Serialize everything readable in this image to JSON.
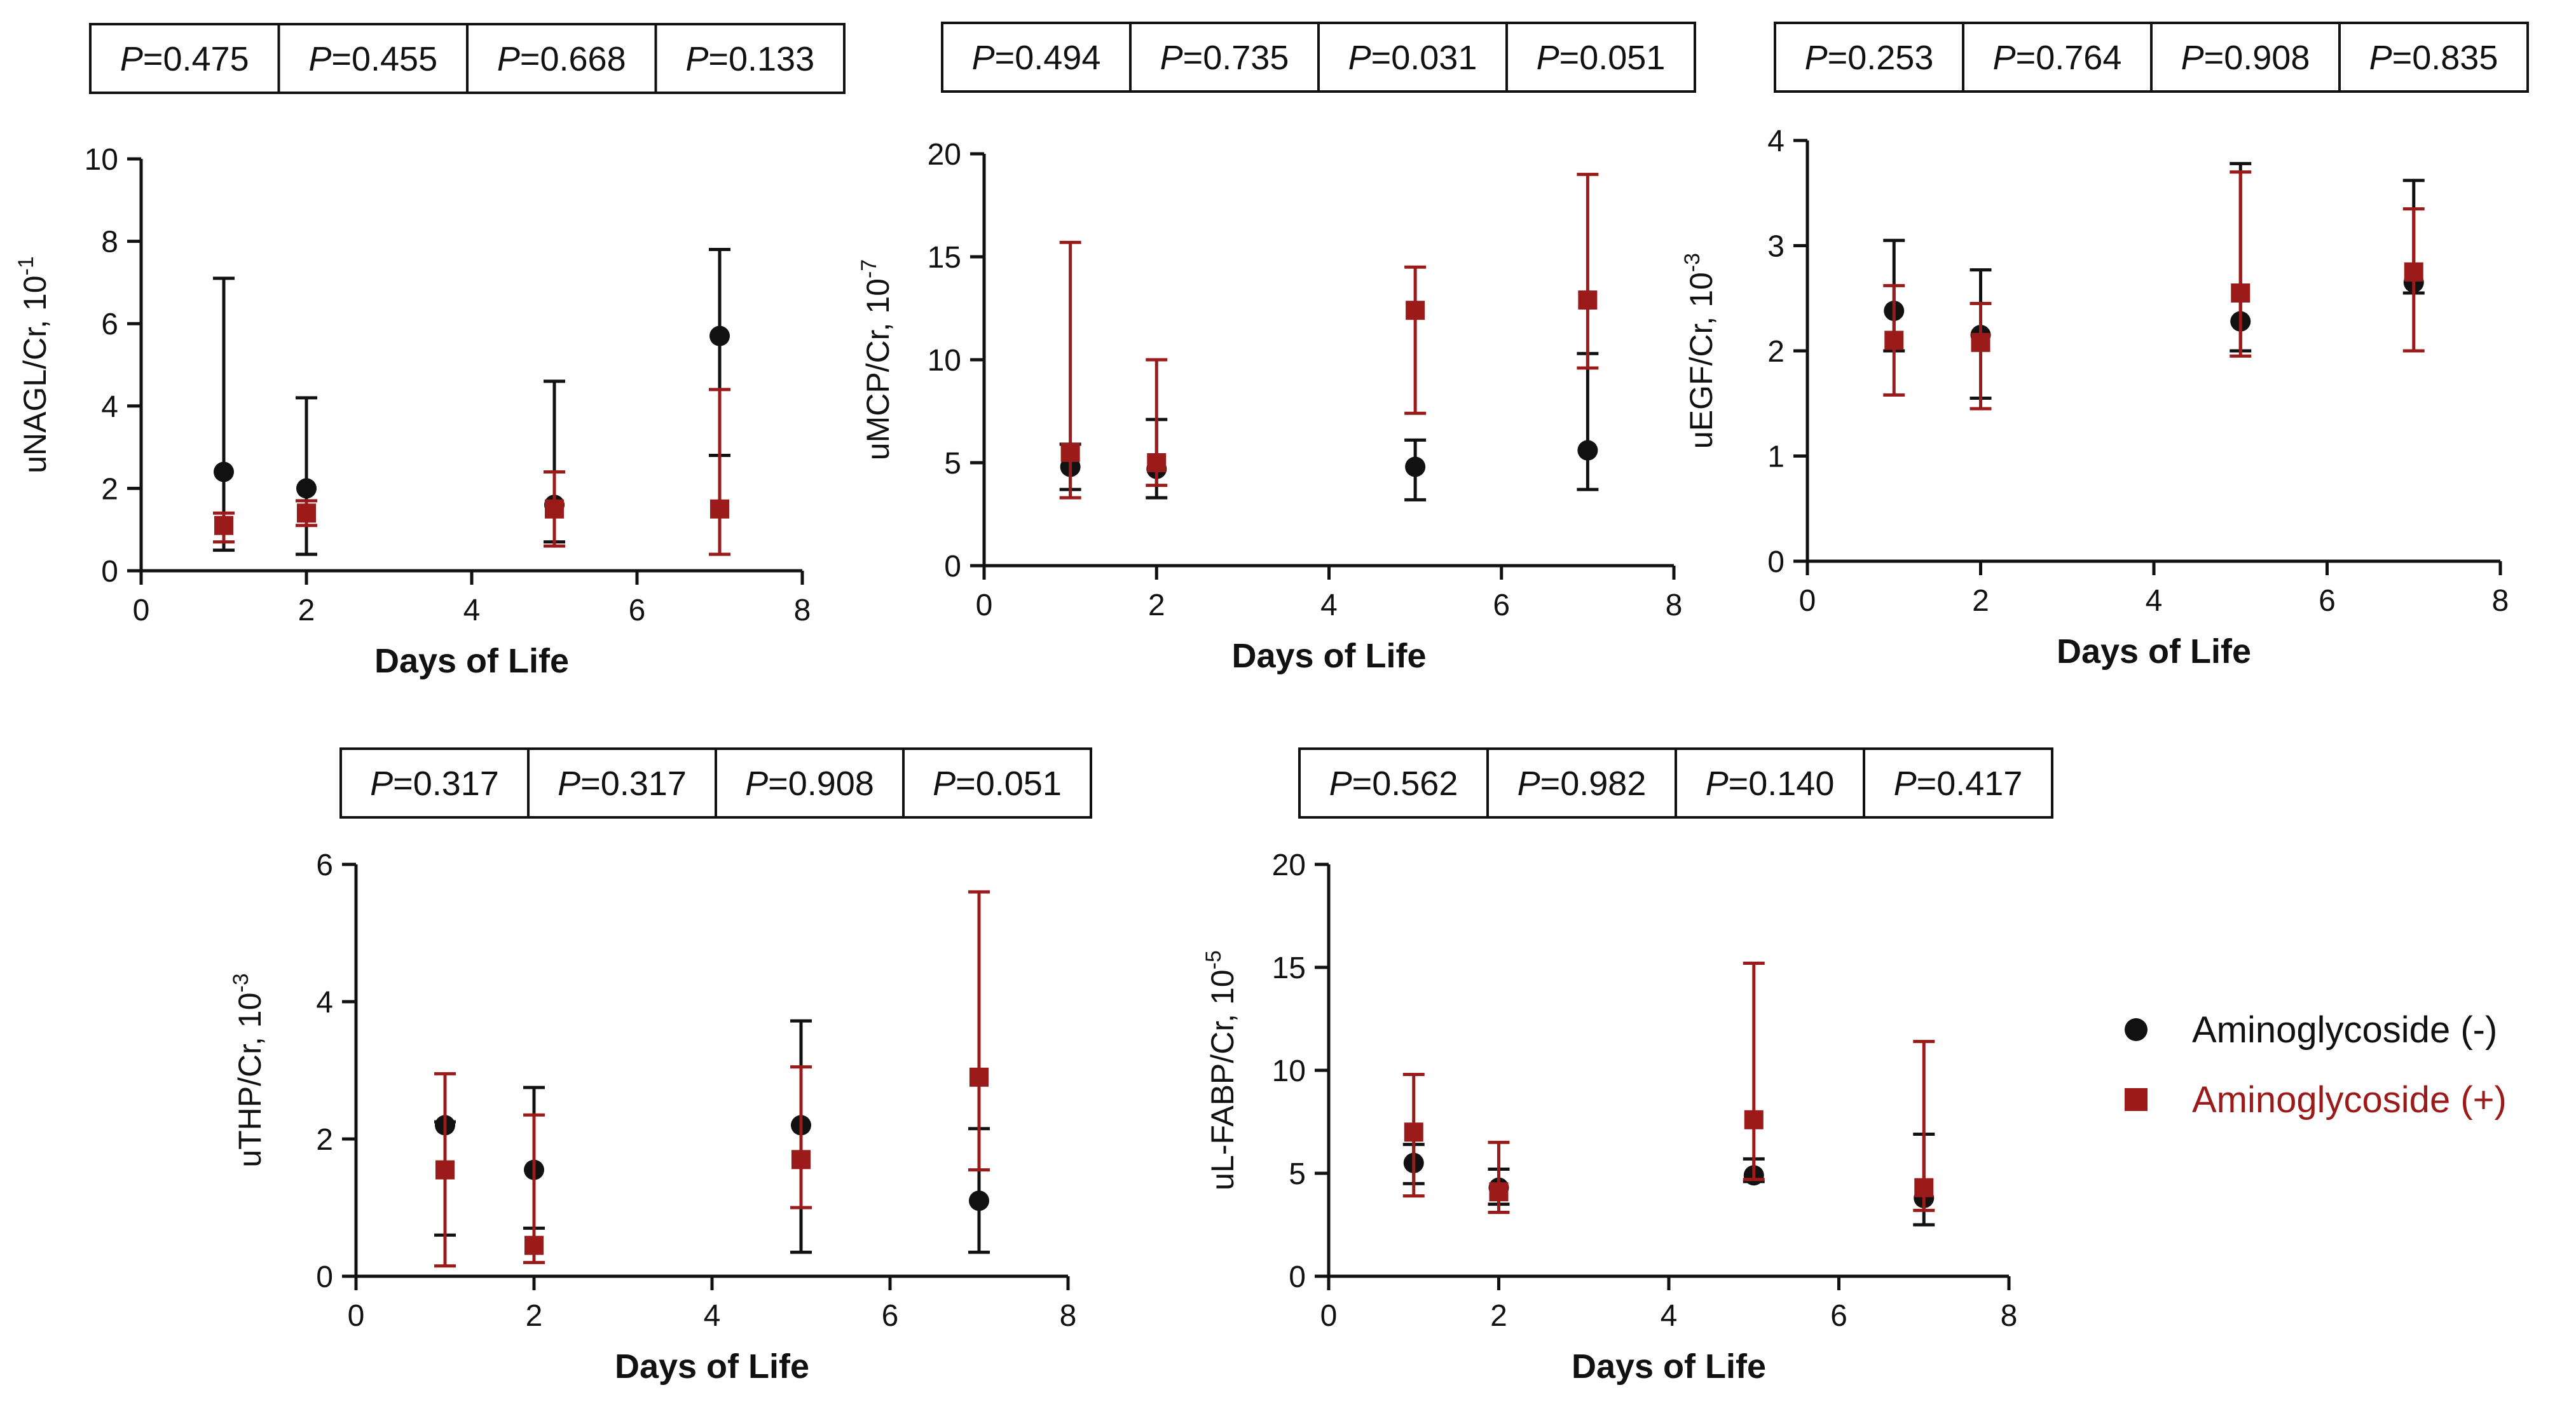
{
  "chart_data": [
    {
      "type": "scatter",
      "ylabel": "uNAGL/Cr, 10",
      "ylabel_exponent": "-1",
      "xlabel": "Days of Life",
      "xlim": [
        0,
        8
      ],
      "ylim": [
        0,
        10
      ],
      "xticks": [
        "0",
        "2",
        "4",
        "6",
        "8"
      ],
      "yticks": [
        "0",
        "2",
        "4",
        "6",
        "8",
        "10"
      ],
      "p_values": [
        "0.475",
        "0.455",
        "0.668",
        "0.133"
      ],
      "x": [
        1,
        2,
        5,
        7
      ],
      "series": [
        {
          "name": "Aminoglycoside (-)",
          "y": [
            2.4,
            2.0,
            1.6,
            5.7
          ],
          "err_low": [
            0.5,
            0.4,
            0.7,
            2.8
          ],
          "err_high": [
            7.1,
            4.2,
            4.6,
            7.8
          ]
        },
        {
          "name": "Aminoglycoside (+)",
          "y": [
            1.1,
            1.4,
            1.5,
            1.5
          ],
          "err_low": [
            0.7,
            1.1,
            0.6,
            0.4
          ],
          "err_high": [
            1.4,
            1.7,
            2.4,
            4.4
          ]
        }
      ]
    },
    {
      "type": "scatter",
      "ylabel": "uMCP/Cr, 10",
      "ylabel_exponent": "-7",
      "xlabel": "Days of Life",
      "xlim": [
        0,
        8
      ],
      "ylim": [
        0,
        20
      ],
      "xticks": [
        "0",
        "2",
        "4",
        "6",
        "8"
      ],
      "yticks": [
        "0",
        "5",
        "10",
        "15",
        "20"
      ],
      "p_values": [
        "0.494",
        "0.735",
        "0.031",
        "0.051"
      ],
      "x": [
        1,
        2,
        5,
        7
      ],
      "series": [
        {
          "name": "Aminoglycoside (-)",
          "y": [
            4.8,
            4.7,
            4.8,
            5.6
          ],
          "err_low": [
            3.7,
            3.3,
            3.2,
            3.7
          ],
          "err_high": [
            5.9,
            7.1,
            6.1,
            10.3
          ]
        },
        {
          "name": "Aminoglycoside (+)",
          "y": [
            5.5,
            5.0,
            12.4,
            12.9
          ],
          "err_low": [
            3.3,
            3.9,
            7.4,
            9.6
          ],
          "err_high": [
            15.7,
            10.0,
            14.5,
            19.0
          ]
        }
      ]
    },
    {
      "type": "scatter",
      "ylabel": "uEGF/Cr, 10",
      "ylabel_exponent": "-3",
      "xlabel": "Days of Life",
      "xlim": [
        0,
        8
      ],
      "ylim": [
        0,
        4
      ],
      "xticks": [
        "0",
        "2",
        "4",
        "6",
        "8"
      ],
      "yticks": [
        "0",
        "1",
        "2",
        "3",
        "4"
      ],
      "p_values": [
        "0.253",
        "0.764",
        "0.908",
        "0.835"
      ],
      "x": [
        1,
        2,
        5,
        7
      ],
      "series": [
        {
          "name": "Aminoglycoside (-)",
          "y": [
            2.38,
            2.15,
            2.28,
            2.65
          ],
          "err_low": [
            2.0,
            1.55,
            2.0,
            2.55
          ],
          "err_high": [
            3.05,
            2.77,
            3.78,
            3.62
          ]
        },
        {
          "name": "Aminoglycoside (+)",
          "y": [
            2.1,
            2.08,
            2.55,
            2.75
          ],
          "err_low": [
            1.58,
            1.45,
            1.95,
            2.0
          ],
          "err_high": [
            2.62,
            2.45,
            3.7,
            3.35
          ]
        }
      ]
    },
    {
      "type": "scatter",
      "ylabel": "uTHP/Cr, 10",
      "ylabel_exponent": "-3",
      "xlabel": "Days of Life",
      "xlim": [
        0,
        8
      ],
      "ylim": [
        0,
        6
      ],
      "xticks": [
        "0",
        "2",
        "4",
        "6",
        "8"
      ],
      "yticks": [
        "0",
        "2",
        "4",
        "6"
      ],
      "p_values": [
        "0.317",
        "0.317",
        "0.908",
        "0.051"
      ],
      "x": [
        1,
        2,
        5,
        7
      ],
      "series": [
        {
          "name": "Aminoglycoside (-)",
          "y": [
            2.2,
            1.55,
            2.2,
            1.1
          ],
          "err_low": [
            0.6,
            0.7,
            0.35,
            0.35
          ],
          "err_high": [
            2.25,
            2.75,
            3.72,
            2.15
          ]
        },
        {
          "name": "Aminoglycoside (+)",
          "y": [
            1.55,
            0.45,
            1.7,
            2.9
          ],
          "err_low": [
            0.15,
            0.2,
            1.0,
            1.55
          ],
          "err_high": [
            2.95,
            2.35,
            3.05,
            5.6
          ]
        }
      ]
    },
    {
      "type": "scatter",
      "ylabel": "uL-FABP/Cr, 10",
      "ylabel_exponent": "-5",
      "xlabel": "Days of Life",
      "xlim": [
        0,
        8
      ],
      "ylim": [
        0,
        20
      ],
      "xticks": [
        "0",
        "2",
        "4",
        "6",
        "8"
      ],
      "yticks": [
        "0",
        "5",
        "10",
        "15",
        "20"
      ],
      "p_values": [
        "0.562",
        "0.982",
        "0.140",
        "0.417"
      ],
      "x": [
        1,
        2,
        5,
        7
      ],
      "series": [
        {
          "name": "Aminoglycoside (-)",
          "y": [
            5.5,
            4.3,
            4.9,
            3.8
          ],
          "err_low": [
            4.5,
            3.5,
            4.6,
            2.5
          ],
          "err_high": [
            6.4,
            5.2,
            5.7,
            6.9
          ]
        },
        {
          "name": "Aminoglycoside (+)",
          "y": [
            7.0,
            4.1,
            7.6,
            4.3
          ],
          "err_low": [
            3.9,
            3.1,
            4.7,
            3.2
          ],
          "err_high": [
            9.8,
            6.5,
            15.2,
            11.4
          ]
        }
      ]
    }
  ],
  "p_prefix": "P",
  "p_eq": "=",
  "legend": {
    "items": [
      {
        "label": "Aminoglycoside (-)",
        "marker": "circle",
        "color": "#111111"
      },
      {
        "label": "Aminoglycoside (+)",
        "marker": "square",
        "color": "#9b1b1b"
      }
    ]
  },
  "colors": {
    "negative": "#111111",
    "positive": "#9b1b1b",
    "axis": "#111111"
  }
}
